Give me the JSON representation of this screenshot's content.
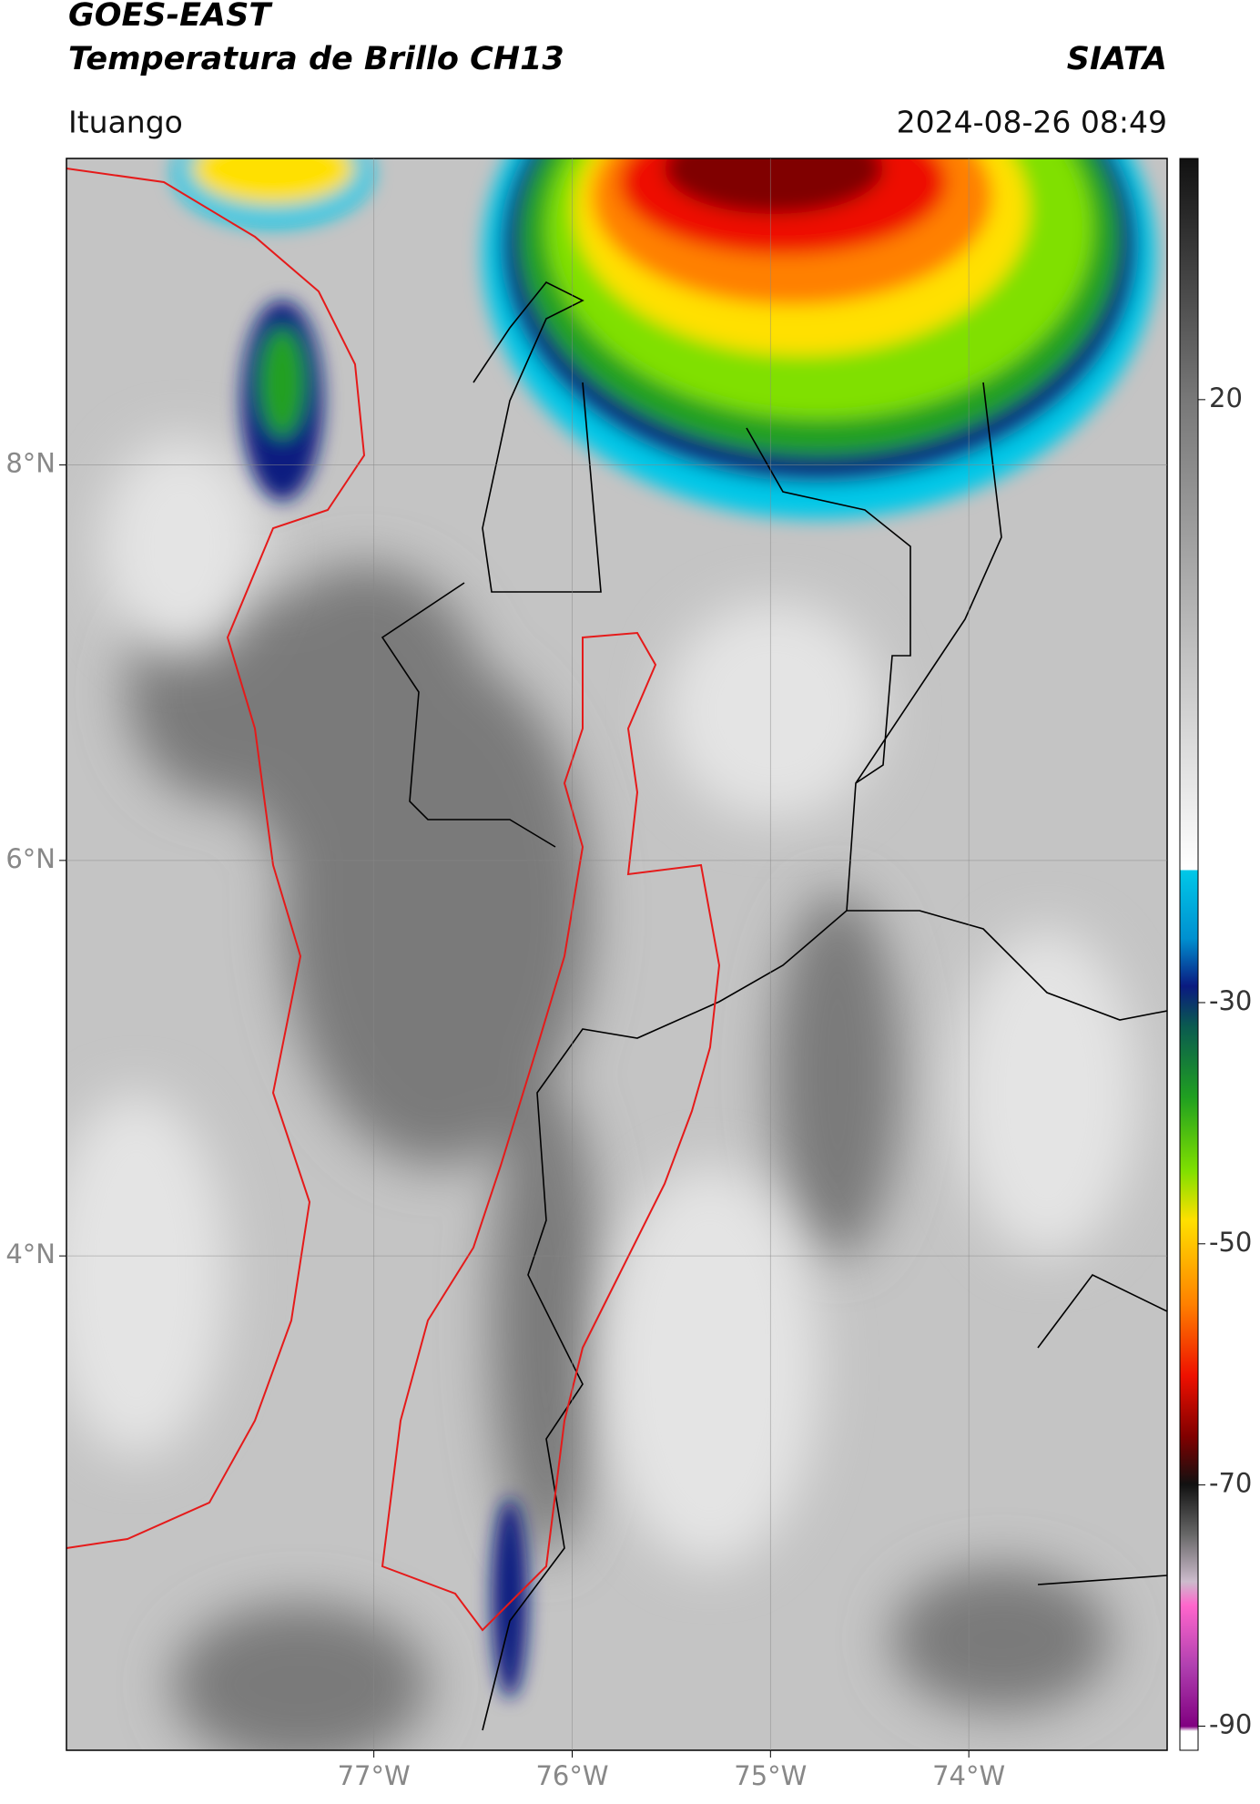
{
  "header": {
    "title_line1": "GOES-EAST",
    "title_line2": "Temperatura de Brillo CH13",
    "source": "SIATA",
    "location": "Ituango",
    "datetime": "2024-08-26 08:49"
  },
  "map": {
    "xlim": [
      -78.55,
      -73.0
    ],
    "ylim": [
      1.5,
      9.55
    ],
    "xticks": [
      {
        "value": -77,
        "label": "77°W"
      },
      {
        "value": -76,
        "label": "76°W"
      },
      {
        "value": -75,
        "label": "75°W"
      },
      {
        "value": -74,
        "label": "74°W"
      }
    ],
    "yticks": [
      {
        "value": 8,
        "label": "8°N"
      },
      {
        "value": 6,
        "label": "6°N"
      },
      {
        "value": 4,
        "label": "4°N"
      }
    ],
    "grid": true
  },
  "colorbar": {
    "lim": [
      -92,
      40
    ],
    "ticks": [
      20,
      -30,
      -50,
      -70,
      -90
    ]
  }
}
